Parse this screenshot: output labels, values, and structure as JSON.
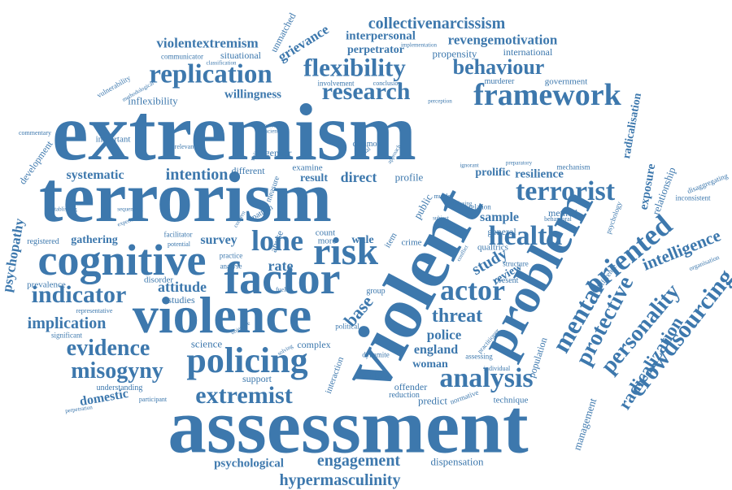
{
  "cloud": {
    "color": "#3d78ad",
    "words": [
      "extremism",
      "terrorism",
      "assessment",
      "violent",
      "violence",
      "cognitive",
      "factor",
      "problem",
      "framework",
      "research",
      "replication",
      "flexibility",
      "behaviour",
      "analysis",
      "policing",
      "health",
      "crowdsourcing",
      "actor",
      "risk",
      "lone",
      "terrorist",
      "oriented",
      "mental",
      "protective",
      "personality",
      "radicalization",
      "intelligence",
      "indicator",
      "extremist",
      "evidence",
      "misogyny",
      "engagement",
      "hypermasculinity",
      "collectivenarcissism",
      "revengemotivation",
      "violentextremism",
      "grievance",
      "interpersonal",
      "perpetrator",
      "propensity",
      "international",
      "willingness",
      "inflexibility",
      "intention",
      "systematic",
      "implication",
      "attitude",
      "psychopathy",
      "psychological",
      "domestic",
      "police",
      "threat",
      "england",
      "woman",
      "england",
      "direct",
      "result",
      "study",
      "sample",
      "review",
      "resilience",
      "prolific",
      "exposure",
      "radicalisation",
      "relationship",
      "management",
      "population",
      "technique",
      "dispensation",
      "predict",
      "offender",
      "interaction",
      "support",
      "complex",
      "science",
      "rate",
      "base",
      "survey",
      "gathering",
      "development",
      "important",
      "unmatched",
      "situational",
      "communicator",
      "involvement",
      "murderer",
      "government",
      "gender",
      "common",
      "examine",
      "different",
      "measure",
      "profile",
      "public",
      "pattern",
      "registered",
      "prevalence",
      "significant",
      "representative",
      "understanding",
      "disorder",
      "studies",
      "dynamite",
      "abuse",
      "count",
      "more",
      "wale",
      "item",
      "crime",
      "method",
      "general",
      "qualtrics",
      "present",
      "structure",
      "psychology",
      "understanding",
      "behavioral",
      "disaggregating",
      "inconsistent",
      "organisation",
      "difference",
      "practitioner",
      "assessing",
      "individual",
      "normative",
      "reduction",
      "developing",
      "political",
      "group",
      "classification",
      "implementation",
      "conclusion",
      "perception",
      "vulnerability",
      "methodological",
      "commentary",
      "prescient",
      "trajectories",
      "validation",
      "relevance",
      "approach",
      "lethal",
      "mechanism",
      "preparatory",
      "ignorant",
      "murder",
      "analysing",
      "relation",
      "subject",
      "identity",
      "conflict",
      "solving",
      "objective",
      "potential",
      "facilitator",
      "practice",
      "analyse",
      "fueled",
      "evidence",
      "perpetration",
      "participant",
      "establishing",
      "sequencing",
      "experience",
      "concern"
    ]
  }
}
